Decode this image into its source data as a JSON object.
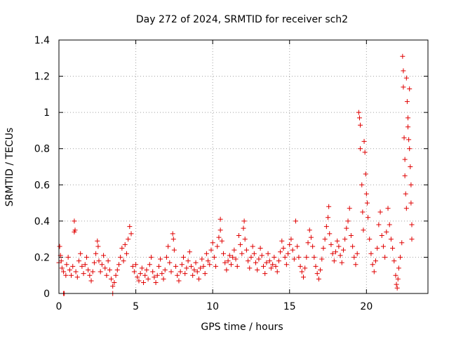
{
  "chart_data": {
    "type": "scatter",
    "title": "Day 272 of 2024, SRMTID for receiver sch2",
    "xlabel": "GPS time / hours",
    "ylabel": "SRMTID / TECUs",
    "xlim": [
      0,
      24
    ],
    "ylim": [
      0,
      1.4
    ],
    "xticks": [
      0,
      5,
      10,
      15,
      20
    ],
    "xtick_labels": [
      "0",
      "5",
      "10",
      "15",
      "20"
    ],
    "yticks": [
      0,
      0.2,
      0.4,
      0.6,
      0.8,
      1.0,
      1.2,
      1.4
    ],
    "ytick_labels": [
      "0",
      "0.2",
      "0.4",
      "0.6",
      "0.8",
      "1",
      "1.2",
      "1.4"
    ],
    "grid": true,
    "marker": "+",
    "color": "#e00000",
    "series": [
      {
        "name": "SRMTID",
        "points": [
          [
            0.0,
            0.17
          ],
          [
            0.05,
            0.26
          ],
          [
            0.1,
            0.21
          ],
          [
            0.15,
            0.18
          ],
          [
            0.2,
            0.14
          ],
          [
            0.3,
            0.12
          ],
          [
            0.3,
            0.0
          ],
          [
            0.35,
            0.0
          ],
          [
            0.45,
            0.1
          ],
          [
            0.5,
            0.16
          ],
          [
            0.6,
            0.2
          ],
          [
            0.7,
            0.13
          ],
          [
            0.8,
            0.1
          ],
          [
            0.9,
            0.15
          ],
          [
            1.0,
            0.4
          ],
          [
            1.0,
            0.34
          ],
          [
            1.05,
            0.35
          ],
          [
            1.1,
            0.12
          ],
          [
            1.2,
            0.09
          ],
          [
            1.3,
            0.18
          ],
          [
            1.4,
            0.22
          ],
          [
            1.5,
            0.15
          ],
          [
            1.6,
            0.11
          ],
          [
            1.7,
            0.16
          ],
          [
            1.8,
            0.2
          ],
          [
            1.9,
            0.13
          ],
          [
            2.0,
            0.1
          ],
          [
            2.1,
            0.07
          ],
          [
            2.2,
            0.12
          ],
          [
            2.3,
            0.17
          ],
          [
            2.4,
            0.22
          ],
          [
            2.5,
            0.29
          ],
          [
            2.55,
            0.26
          ],
          [
            2.6,
            0.18
          ],
          [
            2.7,
            0.12
          ],
          [
            2.8,
            0.16
          ],
          [
            2.9,
            0.21
          ],
          [
            3.0,
            0.14
          ],
          [
            3.1,
            0.1
          ],
          [
            3.2,
            0.18
          ],
          [
            3.3,
            0.13
          ],
          [
            3.4,
            0.08
          ],
          [
            3.5,
            0.04
          ],
          [
            3.5,
            0.0
          ],
          [
            3.6,
            0.06
          ],
          [
            3.7,
            0.1
          ],
          [
            3.8,
            0.13
          ],
          [
            3.9,
            0.16
          ],
          [
            4.0,
            0.2
          ],
          [
            4.1,
            0.25
          ],
          [
            4.2,
            0.18
          ],
          [
            4.3,
            0.27
          ],
          [
            4.4,
            0.22
          ],
          [
            4.5,
            0.3
          ],
          [
            4.6,
            0.37
          ],
          [
            4.7,
            0.33
          ],
          [
            4.8,
            0.15
          ],
          [
            4.9,
            0.12
          ],
          [
            5.0,
            0.16
          ],
          [
            5.1,
            0.09
          ],
          [
            5.2,
            0.07
          ],
          [
            5.3,
            0.11
          ],
          [
            5.4,
            0.14
          ],
          [
            5.5,
            0.06
          ],
          [
            5.6,
            0.1
          ],
          [
            5.7,
            0.13
          ],
          [
            5.8,
            0.08
          ],
          [
            5.9,
            0.16
          ],
          [
            6.0,
            0.2
          ],
          [
            6.1,
            0.12
          ],
          [
            6.2,
            0.09
          ],
          [
            6.3,
            0.06
          ],
          [
            6.4,
            0.1
          ],
          [
            6.5,
            0.15
          ],
          [
            6.6,
            0.19
          ],
          [
            6.7,
            0.11
          ],
          [
            6.8,
            0.08
          ],
          [
            6.9,
            0.13
          ],
          [
            7.0,
            0.2
          ],
          [
            7.1,
            0.26
          ],
          [
            7.2,
            0.17
          ],
          [
            7.3,
            0.12
          ],
          [
            7.4,
            0.33
          ],
          [
            7.45,
            0.3
          ],
          [
            7.5,
            0.24
          ],
          [
            7.6,
            0.15
          ],
          [
            7.7,
            0.1
          ],
          [
            7.8,
            0.07
          ],
          [
            7.9,
            0.12
          ],
          [
            8.0,
            0.16
          ],
          [
            8.1,
            0.2
          ],
          [
            8.2,
            0.11
          ],
          [
            8.3,
            0.14
          ],
          [
            8.4,
            0.18
          ],
          [
            8.5,
            0.23
          ],
          [
            8.6,
            0.15
          ],
          [
            8.7,
            0.1
          ],
          [
            8.8,
            0.13
          ],
          [
            8.9,
            0.17
          ],
          [
            9.0,
            0.12
          ],
          [
            9.1,
            0.08
          ],
          [
            9.2,
            0.14
          ],
          [
            9.3,
            0.19
          ],
          [
            9.4,
            0.15
          ],
          [
            9.5,
            0.11
          ],
          [
            9.6,
            0.22
          ],
          [
            9.7,
            0.18
          ],
          [
            9.8,
            0.16
          ],
          [
            9.9,
            0.24
          ],
          [
            10.0,
            0.28
          ],
          [
            10.1,
            0.2
          ],
          [
            10.2,
            0.15
          ],
          [
            10.3,
            0.26
          ],
          [
            10.4,
            0.31
          ],
          [
            10.5,
            0.35
          ],
          [
            10.5,
            0.41
          ],
          [
            10.6,
            0.29
          ],
          [
            10.7,
            0.22
          ],
          [
            10.8,
            0.17
          ],
          [
            10.9,
            0.13
          ],
          [
            11.0,
            0.18
          ],
          [
            11.1,
            0.21
          ],
          [
            11.2,
            0.16
          ],
          [
            11.3,
            0.2
          ],
          [
            11.4,
            0.24
          ],
          [
            11.5,
            0.19
          ],
          [
            11.6,
            0.15
          ],
          [
            11.7,
            0.32
          ],
          [
            11.8,
            0.27
          ],
          [
            11.9,
            0.22
          ],
          [
            12.0,
            0.36
          ],
          [
            12.05,
            0.4
          ],
          [
            12.1,
            0.3
          ],
          [
            12.2,
            0.24
          ],
          [
            12.3,
            0.18
          ],
          [
            12.4,
            0.14
          ],
          [
            12.5,
            0.2
          ],
          [
            12.6,
            0.26
          ],
          [
            12.7,
            0.22
          ],
          [
            12.8,
            0.17
          ],
          [
            12.9,
            0.13
          ],
          [
            13.0,
            0.19
          ],
          [
            13.1,
            0.25
          ],
          [
            13.2,
            0.21
          ],
          [
            13.3,
            0.15
          ],
          [
            13.4,
            0.11
          ],
          [
            13.5,
            0.17
          ],
          [
            13.6,
            0.22
          ],
          [
            13.7,
            0.18
          ],
          [
            13.8,
            0.14
          ],
          [
            13.9,
            0.16
          ],
          [
            14.0,
            0.2
          ],
          [
            14.1,
            0.15
          ],
          [
            14.2,
            0.12
          ],
          [
            14.3,
            0.18
          ],
          [
            14.4,
            0.23
          ],
          [
            14.5,
            0.29
          ],
          [
            14.6,
            0.25
          ],
          [
            14.7,
            0.2
          ],
          [
            14.8,
            0.16
          ],
          [
            14.9,
            0.22
          ],
          [
            15.0,
            0.27
          ],
          [
            15.1,
            0.3
          ],
          [
            15.2,
            0.24
          ],
          [
            15.3,
            0.19
          ],
          [
            15.4,
            0.4
          ],
          [
            15.5,
            0.26
          ],
          [
            15.6,
            0.2
          ],
          [
            15.7,
            0.15
          ],
          [
            15.8,
            0.12
          ],
          [
            15.9,
            0.09
          ],
          [
            16.0,
            0.14
          ],
          [
            16.1,
            0.2
          ],
          [
            16.2,
            0.28
          ],
          [
            16.3,
            0.35
          ],
          [
            16.4,
            0.31
          ],
          [
            16.5,
            0.26
          ],
          [
            16.6,
            0.2
          ],
          [
            16.7,
            0.15
          ],
          [
            16.8,
            0.11
          ],
          [
            16.9,
            0.08
          ],
          [
            17.0,
            0.13
          ],
          [
            17.1,
            0.19
          ],
          [
            17.2,
            0.25
          ],
          [
            17.3,
            0.3
          ],
          [
            17.4,
            0.37
          ],
          [
            17.5,
            0.42
          ],
          [
            17.55,
            0.48
          ],
          [
            17.6,
            0.33
          ],
          [
            17.7,
            0.27
          ],
          [
            17.8,
            0.22
          ],
          [
            17.9,
            0.18
          ],
          [
            18.0,
            0.23
          ],
          [
            18.1,
            0.29
          ],
          [
            18.2,
            0.26
          ],
          [
            18.3,
            0.21
          ],
          [
            18.4,
            0.17
          ],
          [
            18.5,
            0.24
          ],
          [
            18.6,
            0.3
          ],
          [
            18.7,
            0.36
          ],
          [
            18.8,
            0.4
          ],
          [
            18.9,
            0.47
          ],
          [
            19.0,
            0.32
          ],
          [
            19.1,
            0.26
          ],
          [
            19.2,
            0.2
          ],
          [
            19.3,
            0.16
          ],
          [
            19.4,
            0.22
          ],
          [
            19.5,
            1.0
          ],
          [
            19.55,
            0.97
          ],
          [
            19.6,
            0.93
          ],
          [
            19.6,
            0.8
          ],
          [
            19.7,
            0.6
          ],
          [
            19.75,
            0.45
          ],
          [
            19.8,
            0.35
          ],
          [
            19.85,
            0.84
          ],
          [
            19.9,
            0.78
          ],
          [
            19.95,
            0.66
          ],
          [
            20.0,
            0.55
          ],
          [
            20.05,
            0.5
          ],
          [
            20.1,
            0.42
          ],
          [
            20.2,
            0.3
          ],
          [
            20.3,
            0.22
          ],
          [
            20.4,
            0.16
          ],
          [
            20.5,
            0.12
          ],
          [
            20.6,
            0.18
          ],
          [
            20.7,
            0.25
          ],
          [
            20.8,
            0.38
          ],
          [
            20.9,
            0.45
          ],
          [
            21.0,
            0.32
          ],
          [
            21.1,
            0.26
          ],
          [
            21.2,
            0.2
          ],
          [
            21.3,
            0.34
          ],
          [
            21.4,
            0.47
          ],
          [
            21.5,
            0.38
          ],
          [
            21.6,
            0.3
          ],
          [
            21.7,
            0.25
          ],
          [
            21.8,
            0.18
          ],
          [
            21.9,
            0.1
          ],
          [
            21.95,
            0.05
          ],
          [
            22.0,
            0.03
          ],
          [
            22.05,
            0.08
          ],
          [
            22.1,
            0.14
          ],
          [
            22.2,
            0.2
          ],
          [
            22.3,
            0.28
          ],
          [
            22.35,
            1.31
          ],
          [
            22.4,
            1.23
          ],
          [
            22.4,
            1.14
          ],
          [
            22.45,
            0.86
          ],
          [
            22.5,
            0.74
          ],
          [
            22.5,
            0.65
          ],
          [
            22.55,
            0.55
          ],
          [
            22.6,
            0.47
          ],
          [
            22.6,
            1.19
          ],
          [
            22.65,
            1.06
          ],
          [
            22.7,
            0.97
          ],
          [
            22.7,
            0.92
          ],
          [
            22.75,
            0.85
          ],
          [
            22.8,
            0.8
          ],
          [
            22.8,
            1.13
          ],
          [
            22.85,
            0.7
          ],
          [
            22.9,
            0.6
          ],
          [
            22.9,
            0.5
          ],
          [
            22.95,
            0.38
          ],
          [
            22.95,
            0.3
          ]
        ]
      }
    ]
  }
}
